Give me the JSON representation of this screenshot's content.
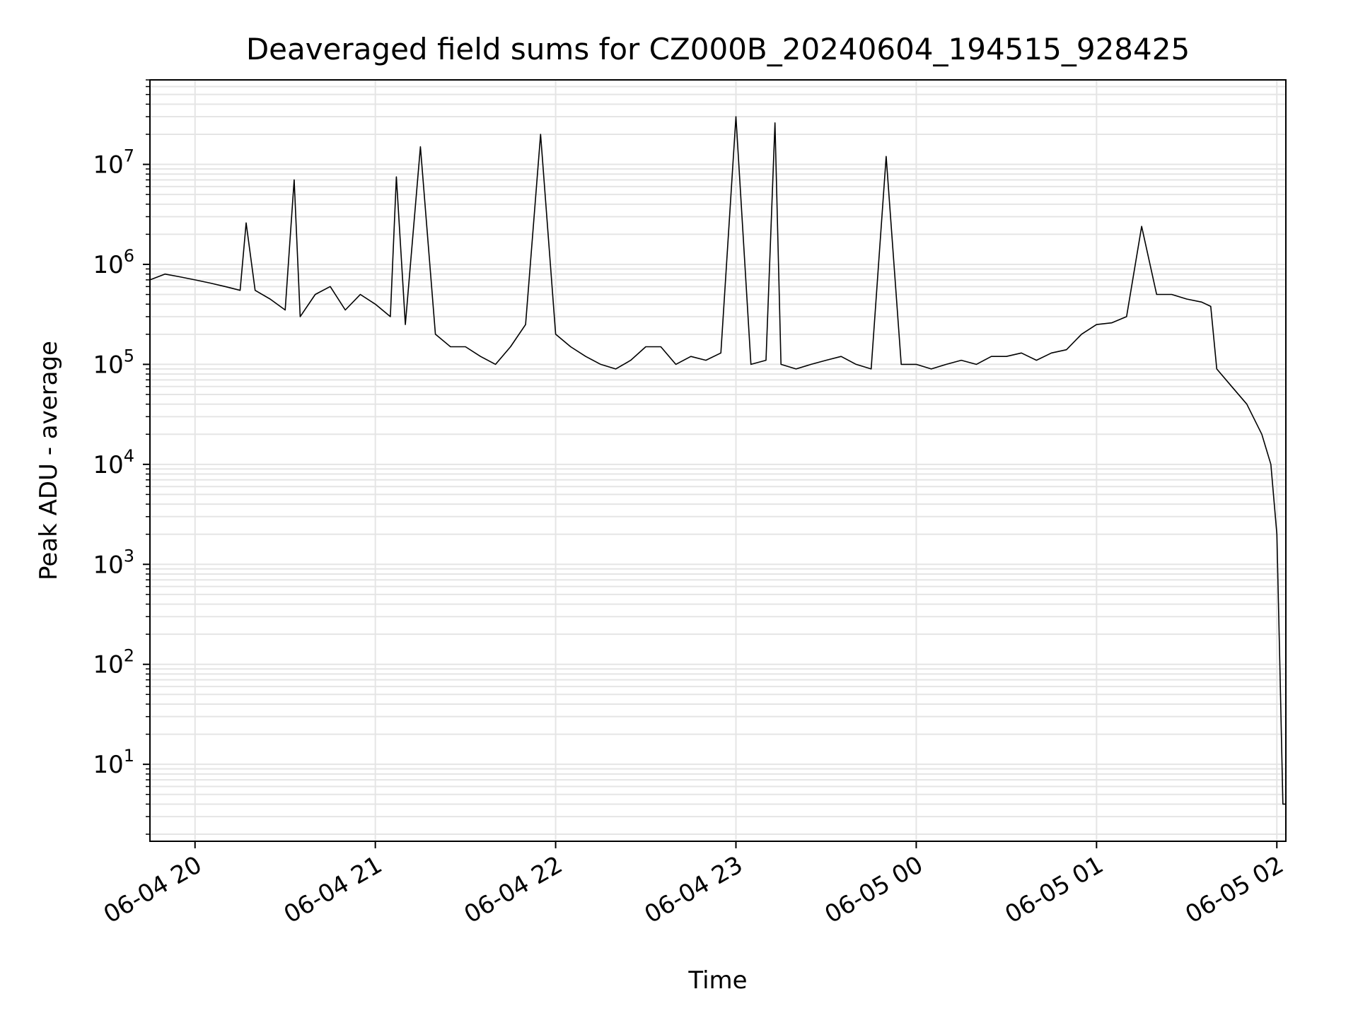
{
  "chart_data": {
    "type": "line",
    "title": "Deaveraged field sums for CZ000B_20240604_194515_928425",
    "xlabel": "Time",
    "ylabel": "Peak ADU - average",
    "yscale": "log",
    "grid": true,
    "xlim": [
      "2024-06-04T19:45",
      "2024-06-05T02:03"
    ],
    "ylim": [
      1.7,
      70000000
    ],
    "x_ticks": [
      {
        "value": "2024-06-04T20:00",
        "label": "06-04 20"
      },
      {
        "value": "2024-06-04T21:00",
        "label": "06-04 21"
      },
      {
        "value": "2024-06-04T22:00",
        "label": "06-04 22"
      },
      {
        "value": "2024-06-04T23:00",
        "label": "06-04 23"
      },
      {
        "value": "2024-06-05T00:00",
        "label": "06-05 00"
      },
      {
        "value": "2024-06-05T01:00",
        "label": "06-05 01"
      },
      {
        "value": "2024-06-05T02:00",
        "label": "06-05 02"
      }
    ],
    "y_ticks": [
      {
        "value": 10,
        "base": "10",
        "exp": "1"
      },
      {
        "value": 100,
        "base": "10",
        "exp": "2"
      },
      {
        "value": 1000,
        "base": "10",
        "exp": "3"
      },
      {
        "value": 10000,
        "base": "10",
        "exp": "4"
      },
      {
        "value": 100000,
        "base": "10",
        "exp": "5"
      },
      {
        "value": 1000000,
        "base": "10",
        "exp": "6"
      },
      {
        "value": 10000000,
        "base": "10",
        "exp": "7"
      }
    ],
    "line_color": "#000000",
    "grid_color": "#e5e5e5",
    "series": [
      {
        "x": [
          "2024-06-04T19:45",
          "2024-06-04T19:50",
          "2024-06-04T19:55",
          "2024-06-04T20:00",
          "2024-06-04T20:05",
          "2024-06-04T20:10",
          "2024-06-04T20:15",
          "2024-06-04T20:17",
          "2024-06-04T20:20",
          "2024-06-04T20:25",
          "2024-06-04T20:30",
          "2024-06-04T20:33",
          "2024-06-04T20:35",
          "2024-06-04T20:40",
          "2024-06-04T20:45",
          "2024-06-04T20:50",
          "2024-06-04T20:55",
          "2024-06-04T21:00",
          "2024-06-04T21:05",
          "2024-06-04T21:07",
          "2024-06-04T21:10",
          "2024-06-04T21:15",
          "2024-06-04T21:20",
          "2024-06-04T21:25",
          "2024-06-04T21:30",
          "2024-06-04T21:35",
          "2024-06-04T21:40",
          "2024-06-04T21:45",
          "2024-06-04T21:50",
          "2024-06-04T21:55",
          "2024-06-04T22:00",
          "2024-06-04T22:05",
          "2024-06-04T22:10",
          "2024-06-04T22:15",
          "2024-06-04T22:20",
          "2024-06-04T22:25",
          "2024-06-04T22:30",
          "2024-06-04T22:35",
          "2024-06-04T22:40",
          "2024-06-04T22:45",
          "2024-06-04T22:50",
          "2024-06-04T22:55",
          "2024-06-04T23:00",
          "2024-06-04T23:05",
          "2024-06-04T23:10",
          "2024-06-04T23:13",
          "2024-06-04T23:15",
          "2024-06-04T23:20",
          "2024-06-04T23:25",
          "2024-06-04T23:30",
          "2024-06-04T23:35",
          "2024-06-04T23:40",
          "2024-06-04T23:45",
          "2024-06-04T23:50",
          "2024-06-04T23:55",
          "2024-06-05T00:00",
          "2024-06-05T00:05",
          "2024-06-05T00:10",
          "2024-06-05T00:15",
          "2024-06-05T00:20",
          "2024-06-05T00:25",
          "2024-06-05T00:30",
          "2024-06-05T00:35",
          "2024-06-05T00:40",
          "2024-06-05T00:45",
          "2024-06-05T00:50",
          "2024-06-05T00:55",
          "2024-06-05T01:00",
          "2024-06-05T01:05",
          "2024-06-05T01:10",
          "2024-06-05T01:15",
          "2024-06-05T01:20",
          "2024-06-05T01:25",
          "2024-06-05T01:30",
          "2024-06-05T01:35",
          "2024-06-05T01:38",
          "2024-06-05T01:40",
          "2024-06-05T01:45",
          "2024-06-05T01:50",
          "2024-06-05T01:55",
          "2024-06-05T01:58",
          "2024-06-05T02:00",
          "2024-06-05T02:01",
          "2024-06-05T02:02",
          "2024-06-05T02:03"
        ],
        "y": [
          700000,
          800000,
          750000,
          700000,
          650000,
          600000,
          550000,
          2600000,
          550000,
          450000,
          350000,
          7000000,
          300000,
          500000,
          600000,
          350000,
          500000,
          400000,
          300000,
          7500000,
          250000,
          15000000,
          200000,
          150000,
          150000,
          120000,
          100000,
          150000,
          250000,
          20000000,
          200000,
          150000,
          120000,
          100000,
          90000,
          110000,
          150000,
          150000,
          100000,
          120000,
          110000,
          130000,
          30000000,
          100000,
          110000,
          26000000,
          100000,
          90000,
          100000,
          110000,
          120000,
          100000,
          90000,
          12000000,
          100000,
          100000,
          90000,
          100000,
          110000,
          100000,
          120000,
          120000,
          130000,
          110000,
          130000,
          140000,
          200000,
          250000,
          260000,
          300000,
          2400000,
          500000,
          500000,
          450000,
          420000,
          380000,
          90000,
          60000,
          40000,
          20000,
          10000,
          2000,
          100,
          4,
          4
        ]
      }
    ]
  }
}
